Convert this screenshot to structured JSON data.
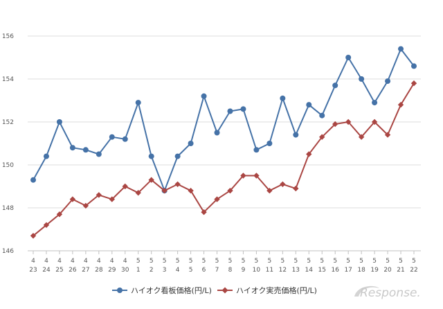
{
  "chart_data": {
    "type": "line",
    "categories": [
      [
        "4",
        "23"
      ],
      [
        "4",
        "24"
      ],
      [
        "4",
        "25"
      ],
      [
        "4",
        "26"
      ],
      [
        "4",
        "27"
      ],
      [
        "4",
        "28"
      ],
      [
        "4",
        "29"
      ],
      [
        "4",
        "30"
      ],
      [
        "5",
        "1"
      ],
      [
        "5",
        "2"
      ],
      [
        "5",
        "3"
      ],
      [
        "5",
        "4"
      ],
      [
        "5",
        "5"
      ],
      [
        "5",
        "6"
      ],
      [
        "5",
        "7"
      ],
      [
        "5",
        "8"
      ],
      [
        "5",
        "9"
      ],
      [
        "5",
        "10"
      ],
      [
        "5",
        "11"
      ],
      [
        "5",
        "12"
      ],
      [
        "5",
        "13"
      ],
      [
        "5",
        "14"
      ],
      [
        "5",
        "15"
      ],
      [
        "5",
        "16"
      ],
      [
        "5",
        "17"
      ],
      [
        "5",
        "18"
      ],
      [
        "5",
        "19"
      ],
      [
        "5",
        "20"
      ],
      [
        "5",
        "21"
      ],
      [
        "5",
        "22"
      ]
    ],
    "series": [
      {
        "name": "ハイオク看板価格(円/L)",
        "color": "#4572a7",
        "marker": "circle",
        "values": [
          149.3,
          150.4,
          152.0,
          150.8,
          150.7,
          150.5,
          151.3,
          151.2,
          152.9,
          150.4,
          148.8,
          150.4,
          151.0,
          153.2,
          151.5,
          152.5,
          152.6,
          150.7,
          151.0,
          153.1,
          151.4,
          152.8,
          152.3,
          153.7,
          155.0,
          154.0,
          152.9,
          153.9,
          155.4,
          154.6
        ]
      },
      {
        "name": "ハイオク実売価格(円/L)",
        "color": "#aa4643",
        "marker": "diamond",
        "values": [
          146.7,
          147.2,
          147.7,
          148.4,
          148.1,
          148.6,
          148.4,
          149.0,
          148.7,
          149.3,
          148.8,
          149.1,
          148.8,
          147.8,
          148.4,
          148.8,
          149.5,
          149.5,
          148.8,
          149.1,
          148.9,
          150.5,
          151.3,
          151.9,
          152.0,
          151.3,
          152.0,
          151.4,
          152.8,
          153.8
        ]
      }
    ],
    "ylim": [
      146,
      156
    ],
    "yticks": [
      146,
      148,
      150,
      152,
      154,
      156
    ],
    "grid": true,
    "legend_position": "bottom",
    "watermark": "Response."
  }
}
